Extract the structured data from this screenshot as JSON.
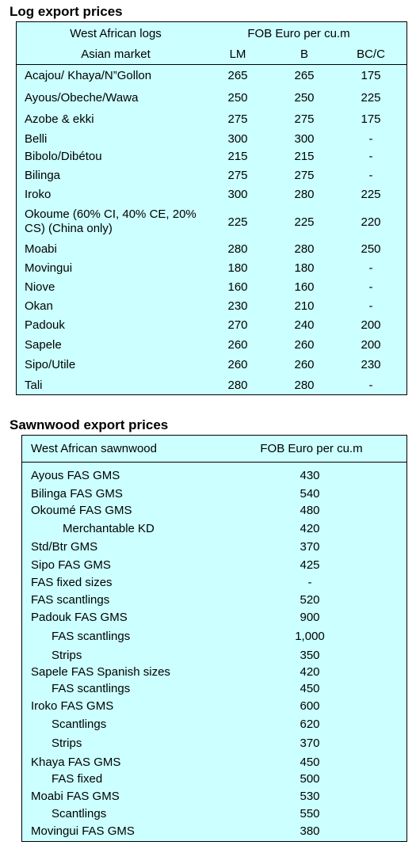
{
  "log_table": {
    "title": "Log export prices",
    "header_left_1": "West African logs",
    "header_left_2": "Asian market",
    "header_group": "FOB Euro per cu.m",
    "columns": [
      "LM",
      "B",
      "BC/C"
    ],
    "rows": [
      {
        "name": "Acajou/ Khaya/N”Gollon",
        "lm": "265",
        "b": "265",
        "bc": "175"
      },
      {
        "name": "Ayous/Obeche/Wawa",
        "lm": "250",
        "b": "250",
        "bc": "225"
      },
      {
        "name": "Azobe & ekki",
        "lm": "275",
        "b": "275",
        "bc": "175"
      },
      {
        "name": "Belli",
        "lm": "300",
        "b": "300",
        "bc": "-"
      },
      {
        "name": "Bibolo/Dibétou",
        "lm": "215",
        "b": "215",
        "bc": "-"
      },
      {
        "name": "Bilinga",
        "lm": "275",
        "b": "275",
        "bc": "-"
      },
      {
        "name": "Iroko",
        "lm": "300",
        "b": "280",
        "bc": "225"
      },
      {
        "name": "Okoume (60% CI, 40% CE, 20% CS) (China only)",
        "lm": "225",
        "b": "225",
        "bc": "220"
      },
      {
        "name": "Moabi",
        "lm": "280",
        "b": "280",
        "bc": "250"
      },
      {
        "name": "Movingui",
        "lm": "180",
        "b": "180",
        "bc": "-"
      },
      {
        "name": "Niove",
        "lm": "160",
        "b": "160",
        "bc": "-"
      },
      {
        "name": "Okan",
        "lm": "230",
        "b": "210",
        "bc": "-"
      },
      {
        "name": "Padouk",
        "lm": "270",
        "b": "240",
        "bc": "200"
      },
      {
        "name": "Sapele",
        "lm": "260",
        "b": "260",
        "bc": "200"
      },
      {
        "name": "Sipo/Utile",
        "lm": "260",
        "b": "260",
        "bc": "230"
      },
      {
        "name": "Tali",
        "lm": "280",
        "b": "280",
        "bc": "-"
      }
    ]
  },
  "sawn_table": {
    "title": "Sawnwood export prices",
    "header_left": "West African sawnwood",
    "header_right": "FOB Euro per cu.m",
    "rows": [
      {
        "name": "Ayous FAS GMS",
        "price": "430"
      },
      {
        "name": "Bilinga FAS GMS",
        "price": "540"
      },
      {
        "name": "Okoumé FAS GMS",
        "price": "480"
      },
      {
        "name": "Merchantable KD",
        "price": "420"
      },
      {
        "name": "Std/Btr GMS",
        "price": "370"
      },
      {
        "name": "Sipo FAS GMS",
        "price": "425"
      },
      {
        "name": "FAS fixed sizes",
        "price": "-"
      },
      {
        "name": "FAS scantlings",
        "price": "520"
      },
      {
        "name": "Padouk FAS GMS",
        "price": "900"
      },
      {
        "name": "FAS scantlings",
        "price": "1,000"
      },
      {
        "name": "Strips",
        "price": "350"
      },
      {
        "name": "Sapele FAS Spanish sizes",
        "price": "420"
      },
      {
        "name": "FAS scantlings",
        "price": "450"
      },
      {
        "name": "Iroko FAS GMS",
        "price": "600"
      },
      {
        "name": "Scantlings",
        "price": "620"
      },
      {
        "name": "Strips",
        "price": "370"
      },
      {
        "name": "Khaya FAS GMS",
        "price": "450"
      },
      {
        "name": "FAS fixed",
        "price": "500"
      },
      {
        "name": "Moabi FAS GMS",
        "price": "530"
      },
      {
        "name": "Scantlings",
        "price": "550"
      },
      {
        "name": "Movingui FAS GMS",
        "price": "380"
      }
    ]
  }
}
